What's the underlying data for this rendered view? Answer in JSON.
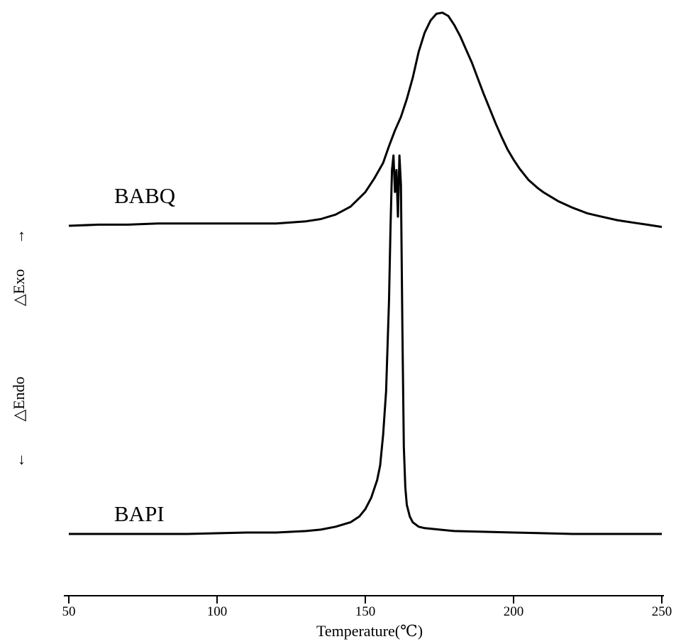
{
  "chart_data": {
    "type": "line",
    "title": "",
    "xlabel": "Temperature(℃)",
    "ylabel": "",
    "xlim": [
      48,
      250
    ],
    "xticks": [
      50,
      100,
      150,
      200,
      250
    ],
    "y_annotations": {
      "exo": "△Exo",
      "exo_arrow": "→",
      "endo": "△Endo",
      "endo_arrow": "←"
    },
    "grid": false,
    "legend": "none",
    "line_color": "#000000",
    "series": [
      {
        "name": "BABQ",
        "x": [
          50,
          60,
          70,
          80,
          90,
          100,
          110,
          120,
          130,
          135,
          140,
          145,
          150,
          153,
          156,
          158,
          160,
          162,
          164,
          166,
          168,
          170,
          172,
          174,
          176,
          178,
          180,
          182,
          184,
          186,
          188,
          190,
          192,
          194,
          196,
          198,
          200,
          202,
          205,
          208,
          210,
          215,
          220,
          225,
          230,
          235,
          240,
          245,
          250
        ],
        "y": [
          0.0,
          0.01,
          0.01,
          0.02,
          0.02,
          0.02,
          0.02,
          0.02,
          0.04,
          0.06,
          0.1,
          0.17,
          0.3,
          0.42,
          0.56,
          0.71,
          0.85,
          0.97,
          1.13,
          1.32,
          1.55,
          1.72,
          1.83,
          1.89,
          1.9,
          1.87,
          1.79,
          1.69,
          1.57,
          1.45,
          1.31,
          1.17,
          1.04,
          0.91,
          0.79,
          0.68,
          0.59,
          0.51,
          0.41,
          0.34,
          0.3,
          0.22,
          0.16,
          0.11,
          0.08,
          0.05,
          0.03,
          0.01,
          -0.01
        ]
      },
      {
        "name": "BAPI",
        "x": [
          50,
          70,
          90,
          110,
          120,
          130,
          135,
          140,
          145,
          148,
          150,
          152,
          154,
          155,
          156,
          157,
          158,
          158.5,
          159,
          159.5,
          160,
          160.5,
          161,
          161.5,
          162,
          162.5,
          163,
          163.5,
          164,
          165,
          166,
          168,
          170,
          175,
          180,
          200,
          220,
          240,
          250
        ],
        "y": [
          0.0,
          0.0,
          0.0,
          0.01,
          0.01,
          0.02,
          0.03,
          0.05,
          0.08,
          0.12,
          0.17,
          0.25,
          0.37,
          0.47,
          0.68,
          0.98,
          1.6,
          2.1,
          2.5,
          2.6,
          2.35,
          2.5,
          2.18,
          2.6,
          2.4,
          1.4,
          0.6,
          0.32,
          0.2,
          0.12,
          0.08,
          0.05,
          0.04,
          0.03,
          0.02,
          0.01,
          0.0,
          0.0,
          0.0
        ]
      }
    ]
  }
}
